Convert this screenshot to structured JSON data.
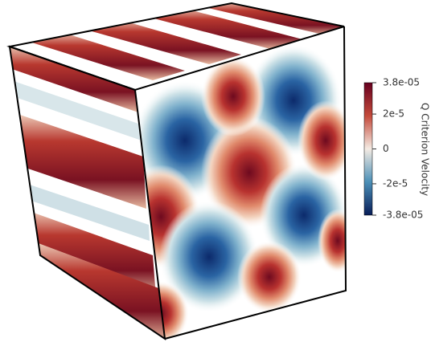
{
  "colorbar": {
    "title": "Q Criterion Velocity",
    "ticks": [
      {
        "value": 3.8e-05,
        "label": "3.8e-05"
      },
      {
        "value": 2e-05,
        "label": "2e-5"
      },
      {
        "value": 0,
        "label": "0"
      },
      {
        "value": -2e-05,
        "label": "-2e-5"
      },
      {
        "value": -3.8e-05,
        "label": "-3.8e-05"
      }
    ]
  }
}
